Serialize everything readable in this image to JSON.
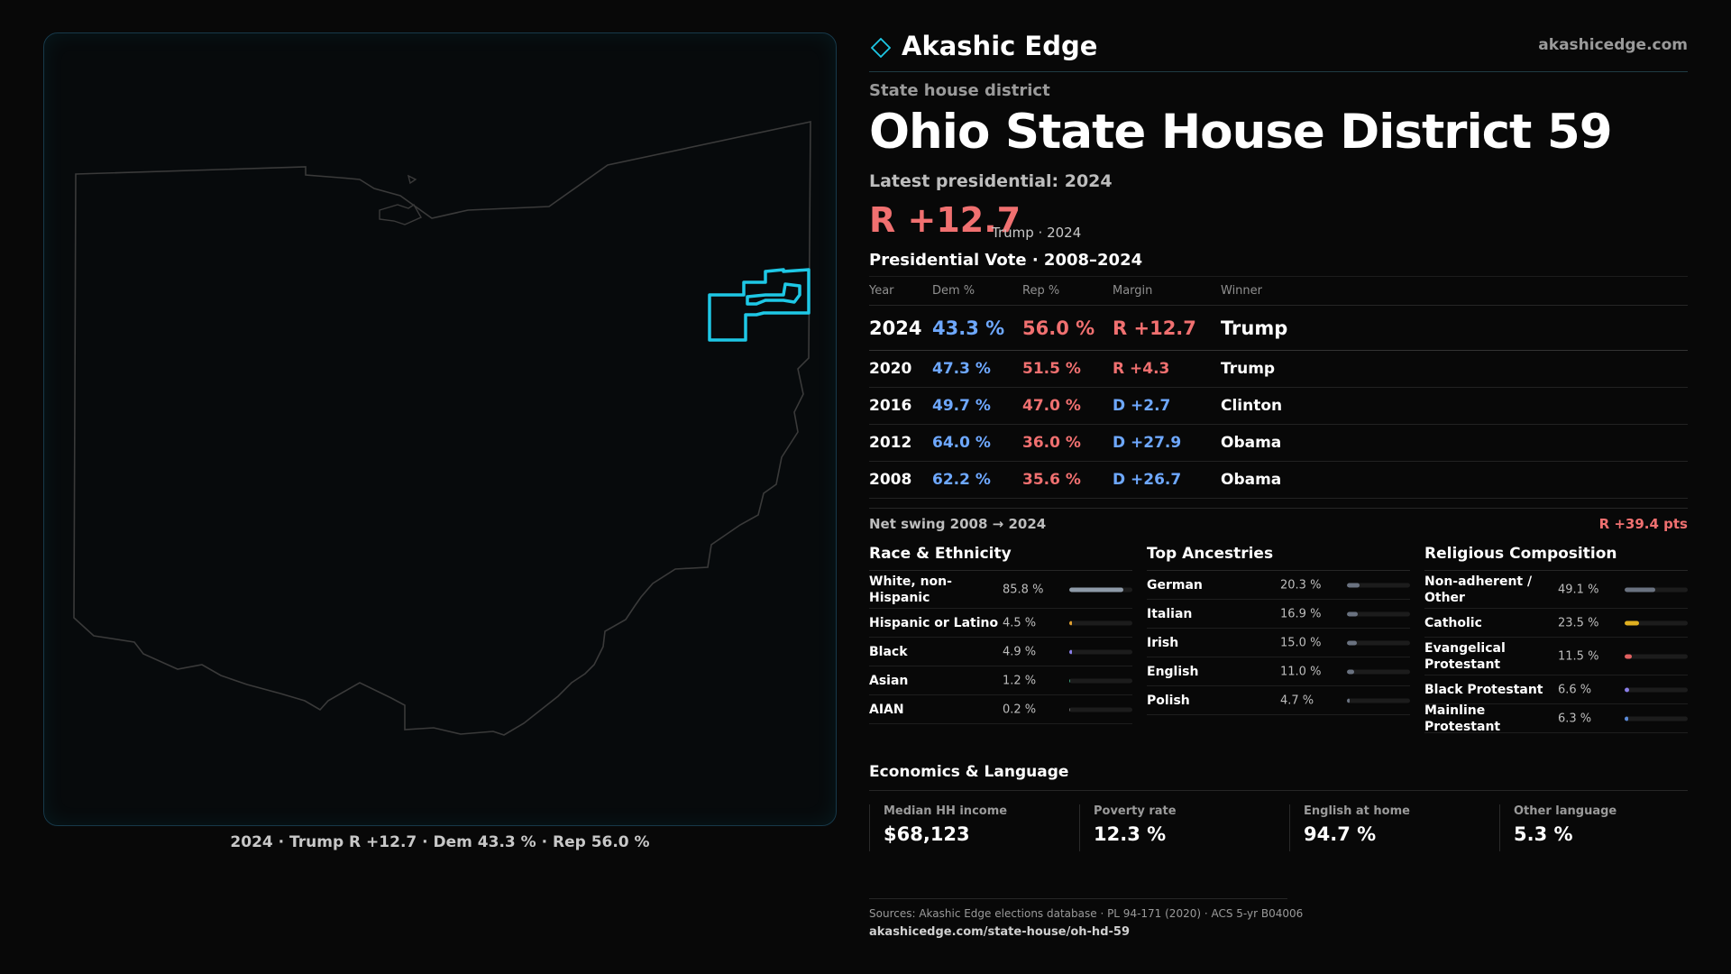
{
  "map": {
    "caption": "2024 · Trump R +12.7 · Dem 43.3 % · Rep 56.0 %",
    "state": "Ohio",
    "district_highlight_color": "#1ec8e6",
    "outline_color": "#3a3a3a"
  },
  "brand": {
    "name": "Akashic Edge",
    "url": "akashicedge.com",
    "logo_icon": "diamond-icon"
  },
  "header": {
    "kicker": "State house district",
    "title": "Ohio State House District 59",
    "latest_label": "Latest presidential: 2024",
    "margin": "R +12.7",
    "margin_sub": "Trump · 2024"
  },
  "votes": {
    "title": "Presidential Vote · 2008–2024",
    "columns": [
      "Year",
      "Dem %",
      "Rep %",
      "Margin",
      "Winner"
    ],
    "rows": [
      {
        "year": "2024",
        "dem": "43.3 %",
        "rep": "56.0 %",
        "margin": "R +12.7",
        "margin_party": "rep",
        "winner": "Trump"
      },
      {
        "year": "2020",
        "dem": "47.3 %",
        "rep": "51.5 %",
        "margin": "R +4.3",
        "margin_party": "rep",
        "winner": "Trump"
      },
      {
        "year": "2016",
        "dem": "49.7 %",
        "rep": "47.0 %",
        "margin": "D +2.7",
        "margin_party": "dem",
        "winner": "Clinton"
      },
      {
        "year": "2012",
        "dem": "64.0 %",
        "rep": "36.0 %",
        "margin": "D +27.9",
        "margin_party": "dem",
        "winner": "Obama"
      },
      {
        "year": "2008",
        "dem": "62.2 %",
        "rep": "35.6 %",
        "margin": "D +26.7",
        "margin_party": "dem",
        "winner": "Obama"
      }
    ],
    "swing_label": "Net swing 2008 → 2024",
    "swing_value": "R +39.4 pts"
  },
  "race": {
    "title": "Race & Ethnicity",
    "items": [
      {
        "label": "White, non-Hispanic",
        "value": "85.8 %",
        "pct": 85.8,
        "color": "#8e9aa8"
      },
      {
        "label": "Hispanic or Latino",
        "value": "4.5 %",
        "pct": 4.5,
        "color": "#e0a030"
      },
      {
        "label": "Black",
        "value": "4.9 %",
        "pct": 4.9,
        "color": "#8a7ee8"
      },
      {
        "label": "Asian",
        "value": "1.2 %",
        "pct": 1.2,
        "color": "#3aa07a"
      },
      {
        "label": "AIAN",
        "value": "0.2 %",
        "pct": 0.2,
        "color": "#6a6a6a"
      }
    ]
  },
  "ancestry": {
    "title": "Top Ancestries",
    "items": [
      {
        "label": "German",
        "value": "20.3 %",
        "pct": 20.3,
        "color": "#6a7280"
      },
      {
        "label": "Italian",
        "value": "16.9 %",
        "pct": 16.9,
        "color": "#6a7280"
      },
      {
        "label": "Irish",
        "value": "15.0 %",
        "pct": 15.0,
        "color": "#6a7280"
      },
      {
        "label": "English",
        "value": "11.0 %",
        "pct": 11.0,
        "color": "#6a7280"
      },
      {
        "label": "Polish",
        "value": "4.7 %",
        "pct": 4.7,
        "color": "#6a7280"
      }
    ]
  },
  "religion": {
    "title": "Religious Composition",
    "items": [
      {
        "label": "Non-adherent / Other",
        "value": "49.1 %",
        "pct": 49.1,
        "color": "#6a7280"
      },
      {
        "label": "Catholic",
        "value": "23.5 %",
        "pct": 23.5,
        "color": "#e0b020"
      },
      {
        "label": "Evangelical Protestant",
        "value": "11.5 %",
        "pct": 11.5,
        "color": "#e06060"
      },
      {
        "label": "Black Protestant",
        "value": "6.6 %",
        "pct": 6.6,
        "color": "#8a7ee8"
      },
      {
        "label": "Mainline Protestant",
        "value": "6.3 %",
        "pct": 6.3,
        "color": "#5a8ad8"
      }
    ]
  },
  "economics": {
    "title": "Economics & Language",
    "cards": [
      {
        "label": "Median HH income",
        "value": "$68,123"
      },
      {
        "label": "Poverty rate",
        "value": "12.3 %"
      },
      {
        "label": "English at home",
        "value": "94.7 %"
      },
      {
        "label": "Other language",
        "value": "5.3 %"
      }
    ]
  },
  "footer": {
    "sources": "Sources: Akashic Edge elections database · PL 94-171 (2020) · ACS 5-yr B04006",
    "url": "akashicedge.com/state-house/oh-hd-59"
  }
}
